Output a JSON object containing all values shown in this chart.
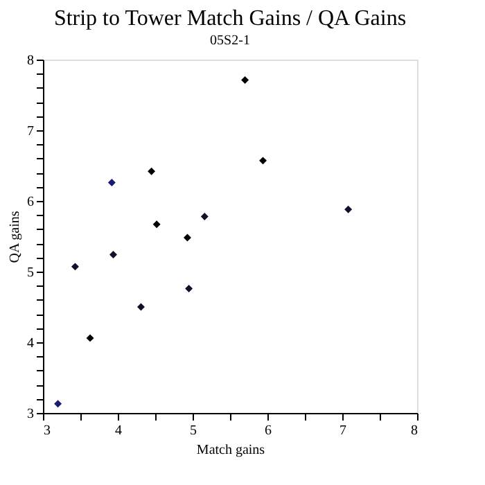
{
  "chart_data": {
    "type": "scatter",
    "title": "Strip to Tower Match Gains / QA Gains",
    "subtitle": "05S2-1",
    "xlabel": "Match gains",
    "ylabel": "QA gains",
    "x": [
      3.2,
      3.43,
      3.63,
      3.92,
      3.94,
      4.31,
      4.45,
      4.52,
      4.93,
      4.95,
      5.16,
      5.7,
      5.94,
      7.08
    ],
    "values": [
      3.13,
      5.07,
      4.06,
      6.26,
      5.24,
      4.5,
      6.42,
      5.67,
      5.48,
      4.76,
      5.78,
      7.71,
      6.57,
      5.88
    ],
    "colors": [
      "#1a1a70",
      "#10102a",
      "#000000",
      "#1a1a70",
      "#10102a",
      "#10102a",
      "#000000",
      "#000000",
      "#000000",
      "#10102a",
      "#10102a",
      "#000000",
      "#000000",
      "#10102a"
    ],
    "xlim": [
      3,
      8
    ],
    "ylim": [
      3,
      8
    ],
    "xticks": [
      3,
      {
        "value": 3.5,
        "label": null
      },
      4,
      {
        "value": 4.5,
        "label": null
      },
      5,
      {
        "value": 5.5,
        "label": null
      },
      6,
      {
        "value": 6.5,
        "label": null
      },
      7,
      {
        "value": 7.5,
        "label": null
      },
      8
    ],
    "yticks": [
      3,
      {
        "value": 3.2,
        "label": null
      },
      {
        "value": 3.4,
        "label": null
      },
      {
        "value": 3.6,
        "label": null
      },
      {
        "value": 3.8,
        "label": null
      },
      4,
      {
        "value": 4.2,
        "label": null
      },
      {
        "value": 4.4,
        "label": null
      },
      {
        "value": 4.6,
        "label": null
      },
      {
        "value": 4.8,
        "label": null
      },
      5,
      {
        "value": 5.2,
        "label": null
      },
      {
        "value": 5.4,
        "label": null
      },
      {
        "value": 5.6,
        "label": null
      },
      {
        "value": 5.8,
        "label": null
      },
      6,
      {
        "value": 6.2,
        "label": null
      },
      {
        "value": 6.4,
        "label": null
      },
      {
        "value": 6.6,
        "label": null
      },
      {
        "value": 6.8,
        "label": null
      },
      7,
      {
        "value": 7.2,
        "label": null
      },
      {
        "value": 7.4,
        "label": null
      },
      {
        "value": 7.6,
        "label": null
      },
      {
        "value": 7.8,
        "label": null
      },
      8
    ],
    "grid": false,
    "legend": false,
    "marker": "diamond"
  }
}
